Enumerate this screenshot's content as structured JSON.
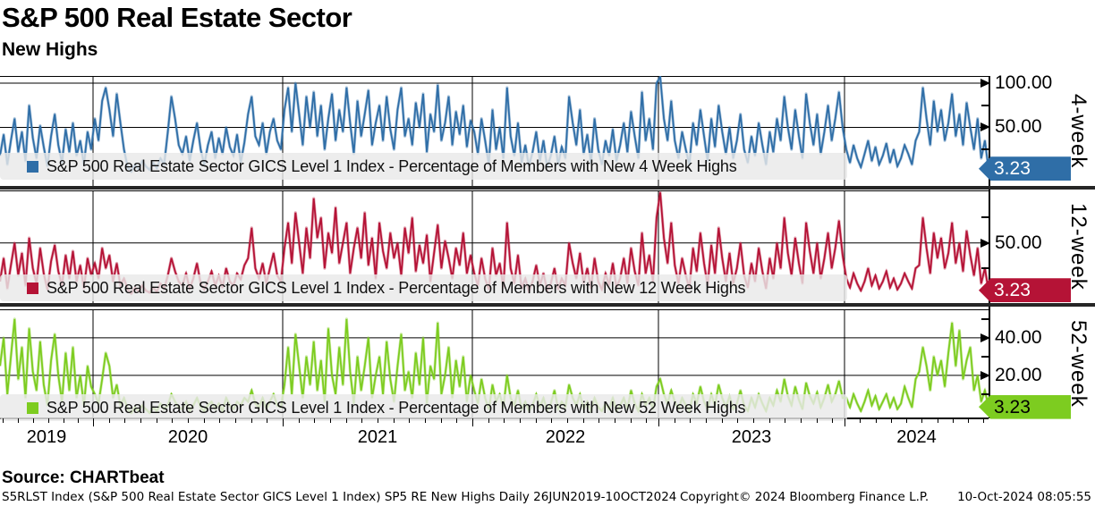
{
  "header": {
    "title": "S&P 500 Real Estate Sector",
    "subtitle": "New Highs"
  },
  "source_label": "Source: CHARTbeat",
  "footer": {
    "left": "S5RLST Index (S&P 500 Real Estate Sector GICS Level 1 Index) SP5 RE New Highs  Daily 26JUN2019-10OCT2024",
    "center": "Copyright© 2024 Bloomberg Finance L.P.",
    "right": "10-Oct-2024 08:05:55"
  },
  "x_axis": {
    "years": [
      "2019",
      "2020",
      "2021",
      "2022",
      "2023",
      "2024"
    ]
  },
  "chart_data": {
    "type": "line",
    "x_range": [
      "26JUN2019",
      "10OCT2024"
    ],
    "sampling": "weekly",
    "grid": true,
    "panels": [
      {
        "name": "4-week",
        "legend": "S&P 500 Real Estate Sector GICS Level 1 Index - Percentage of Members with New 4 Week Highs",
        "color": "#2f6ea7",
        "last_value": "3.23",
        "badge_text_color": "#ffffff",
        "ylim": [
          -16.2,
          108.1
        ],
        "ticks": [
          {
            "v": 100,
            "label": "100.00"
          },
          {
            "v": 50,
            "label": "50.00"
          }
        ],
        "minor_ticks": [
          75,
          25
        ],
        "values": [
          18,
          42,
          8,
          35,
          60,
          22,
          45,
          12,
          75,
          38,
          15,
          52,
          28,
          6,
          40,
          65,
          30,
          10,
          48,
          22,
          55,
          18,
          35,
          8,
          45,
          25,
          60,
          35,
          80,
          95,
          70,
          40,
          88,
          55,
          25,
          5,
          0,
          8,
          3,
          12,
          6,
          2,
          10,
          4,
          15,
          8,
          45,
          85,
          60,
          30,
          20,
          40,
          12,
          35,
          55,
          25,
          8,
          30,
          45,
          15,
          38,
          20,
          50,
          28,
          18,
          42,
          10,
          33,
          65,
          85,
          40,
          30,
          55,
          20,
          45,
          60,
          35,
          25,
          70,
          95,
          45,
          100,
          65,
          30,
          85,
          50,
          90,
          40,
          75,
          25,
          60,
          88,
          35,
          70,
          45,
          95,
          55,
          20,
          80,
          40,
          65,
          92,
          30,
          55,
          75,
          35,
          85,
          48,
          25,
          70,
          95,
          40,
          60,
          30,
          78,
          50,
          88,
          22,
          65,
          45,
          98,
          35,
          55,
          85,
          30,
          68,
          42,
          75,
          28,
          58,
          45,
          20,
          60,
          35,
          8,
          70,
          25,
          50,
          15,
          95,
          40,
          18,
          55,
          10,
          30,
          6,
          22,
          45,
          12,
          35,
          5,
          18,
          40,
          8,
          28,
          15,
          85,
          55,
          30,
          70,
          20,
          42,
          10,
          60,
          25,
          8,
          35,
          18,
          48,
          12,
          30,
          55,
          22,
          68,
          40,
          15,
          90,
          35,
          60,
          25,
          100,
          107,
          60,
          35,
          80,
          35,
          15,
          45,
          25,
          8,
          55,
          30,
          70,
          40,
          12,
          60,
          28,
          75,
          45,
          20,
          50,
          15,
          35,
          65,
          25,
          10,
          40,
          18,
          55,
          30,
          8,
          45,
          22,
          60,
          35,
          85,
          50,
          25,
          70,
          40,
          15,
          88,
          55,
          30,
          65,
          20,
          45,
          75,
          35,
          60,
          90,
          50,
          25,
          10,
          30,
          15,
          5,
          20,
          35,
          12,
          28,
          8,
          18,
          32,
          10,
          25,
          6,
          15,
          30,
          20,
          8,
          35,
          45,
          95,
          60,
          30,
          80,
          45,
          70,
          35,
          55,
          88,
          40,
          65,
          30,
          78,
          50,
          25,
          60,
          15,
          35,
          3.23
        ]
      },
      {
        "name": "12-week",
        "legend": "S&P 500 Real Estate Sector GICS Level 1 Index - Percentage of Members with New 12 Week Highs",
        "color": "#b51336",
        "last_value": "3.23",
        "badge_text_color": "#ffffff",
        "ylim": [
          -9.3,
          101.9
        ],
        "ticks": [
          {
            "v": 50,
            "label": "50.00"
          }
        ],
        "minor_ticks": [
          75,
          25
        ],
        "values": [
          12,
          35,
          5,
          28,
          50,
          18,
          40,
          8,
          55,
          25,
          10,
          45,
          20,
          4,
          32,
          48,
          22,
          8,
          38,
          15,
          42,
          12,
          28,
          5,
          35,
          18,
          30,
          15,
          45,
          25,
          38,
          12,
          30,
          8,
          15,
          4,
          0,
          6,
          2,
          8,
          3,
          1,
          6,
          2,
          10,
          5,
          18,
          35,
          22,
          12,
          8,
          20,
          5,
          15,
          30,
          10,
          4,
          12,
          22,
          8,
          18,
          6,
          25,
          12,
          8,
          20,
          14,
          28,
          35,
          65,
          25,
          15,
          30,
          10,
          25,
          40,
          18,
          12,
          45,
          70,
          30,
          80,
          50,
          20,
          65,
          35,
          94,
          55,
          75,
          25,
          60,
          40,
          85,
          30,
          50,
          70,
          20,
          45,
          65,
          35,
          80,
          28,
          55,
          15,
          70,
          42,
          25,
          60,
          35,
          50,
          18,
          65,
          40,
          75,
          22,
          48,
          30,
          58,
          12,
          40,
          68,
          25,
          52,
          35,
          15,
          45,
          28,
          60,
          20,
          38,
          20,
          8,
          35,
          15,
          4,
          45,
          18,
          30,
          6,
          70,
          25,
          10,
          38,
          5,
          15,
          2,
          12,
          28,
          8,
          20,
          3,
          10,
          25,
          4,
          15,
          8,
          50,
          30,
          15,
          40,
          10,
          25,
          5,
          35,
          12,
          4,
          20,
          8,
          30,
          6,
          15,
          35,
          10,
          45,
          22,
          8,
          60,
          20,
          38,
          12,
          75,
          100,
          55,
          30,
          70,
          28,
          10,
          35,
          18,
          5,
          45,
          22,
          60,
          30,
          8,
          48,
          20,
          65,
          35,
          12,
          40,
          10,
          25,
          50,
          18,
          6,
          30,
          12,
          45,
          22,
          5,
          35,
          15,
          50,
          25,
          75,
          40,
          18,
          55,
          30,
          10,
          70,
          42,
          20,
          50,
          15,
          35,
          60,
          25,
          45,
          72,
          38,
          15,
          6,
          20,
          10,
          3,
          12,
          25,
          8,
          18,
          5,
          12,
          22,
          6,
          15,
          4,
          10,
          20,
          12,
          5,
          25,
          28,
          75,
          45,
          20,
          60,
          35,
          55,
          25,
          40,
          70,
          30,
          50,
          22,
          62,
          38,
          18,
          45,
          10,
          25,
          3.23
        ]
      },
      {
        "name": "52-week",
        "legend": "S&P 500 Real Estate Sector GICS Level 1 Index - Percentage of Members with New 52 Week Highs",
        "color": "#7dcc20",
        "last_value": "3.23",
        "badge_text_color": "#000000",
        "ylim": [
          -2.9,
          55.2
        ],
        "ticks": [
          {
            "v": 40,
            "label": "40.00"
          },
          {
            "v": 20,
            "label": "20.00"
          }
        ],
        "minor_ticks": [
          50,
          30,
          10
        ],
        "values": [
          25,
          40,
          10,
          30,
          50,
          18,
          35,
          8,
          45,
          22,
          12,
          38,
          15,
          4,
          28,
          42,
          20,
          6,
          32,
          12,
          35,
          8,
          20,
          4,
          25,
          14,
          10,
          5,
          18,
          32,
          25,
          8,
          15,
          4,
          8,
          2,
          0,
          3,
          1,
          4,
          2,
          0,
          3,
          1,
          5,
          2,
          4,
          10,
          6,
          3,
          2,
          6,
          1,
          4,
          8,
          3,
          1,
          4,
          6,
          2,
          5,
          1,
          8,
          4,
          2,
          6,
          4,
          8,
          6,
          12,
          5,
          3,
          8,
          2,
          6,
          10,
          4,
          3,
          15,
          35,
          10,
          42,
          25,
          8,
          30,
          15,
          38,
          12,
          28,
          6,
          45,
          20,
          10,
          35,
          15,
          50,
          22,
          5,
          30,
          12,
          25,
          40,
          8,
          20,
          30,
          10,
          38,
          18,
          6,
          25,
          42,
          12,
          22,
          8,
          32,
          15,
          40,
          5,
          25,
          18,
          48,
          10,
          20,
          35,
          8,
          28,
          14,
          30,
          6,
          20,
          12,
          5,
          18,
          8,
          2,
          15,
          6,
          10,
          3,
          20,
          8,
          4,
          12,
          2,
          6,
          1,
          4,
          10,
          3,
          8,
          1,
          5,
          12,
          2,
          6,
          3,
          15,
          8,
          4,
          10,
          2,
          6,
          1,
          8,
          3,
          1,
          5,
          2,
          8,
          1,
          4,
          8,
          2,
          12,
          5,
          1,
          10,
          4,
          8,
          2,
          14,
          18,
          10,
          5,
          12,
          6,
          2,
          8,
          4,
          1,
          10,
          5,
          14,
          6,
          2,
          10,
          4,
          15,
          8,
          3,
          9,
          2,
          5,
          12,
          4,
          1,
          8,
          3,
          10,
          5,
          1,
          8,
          4,
          12,
          6,
          18,
          9,
          4,
          14,
          7,
          2,
          16,
          9,
          5,
          11,
          3,
          8,
          15,
          6,
          10,
          17,
          8,
          8,
          3,
          10,
          5,
          1,
          6,
          12,
          4,
          9,
          2,
          6,
          10,
          3,
          8,
          2,
          5,
          14,
          8,
          3,
          18,
          22,
          35,
          25,
          12,
          30,
          20,
          28,
          14,
          32,
          48,
          25,
          44,
          18,
          28,
          35,
          12,
          20,
          6,
          12,
          3.23
        ]
      }
    ]
  }
}
